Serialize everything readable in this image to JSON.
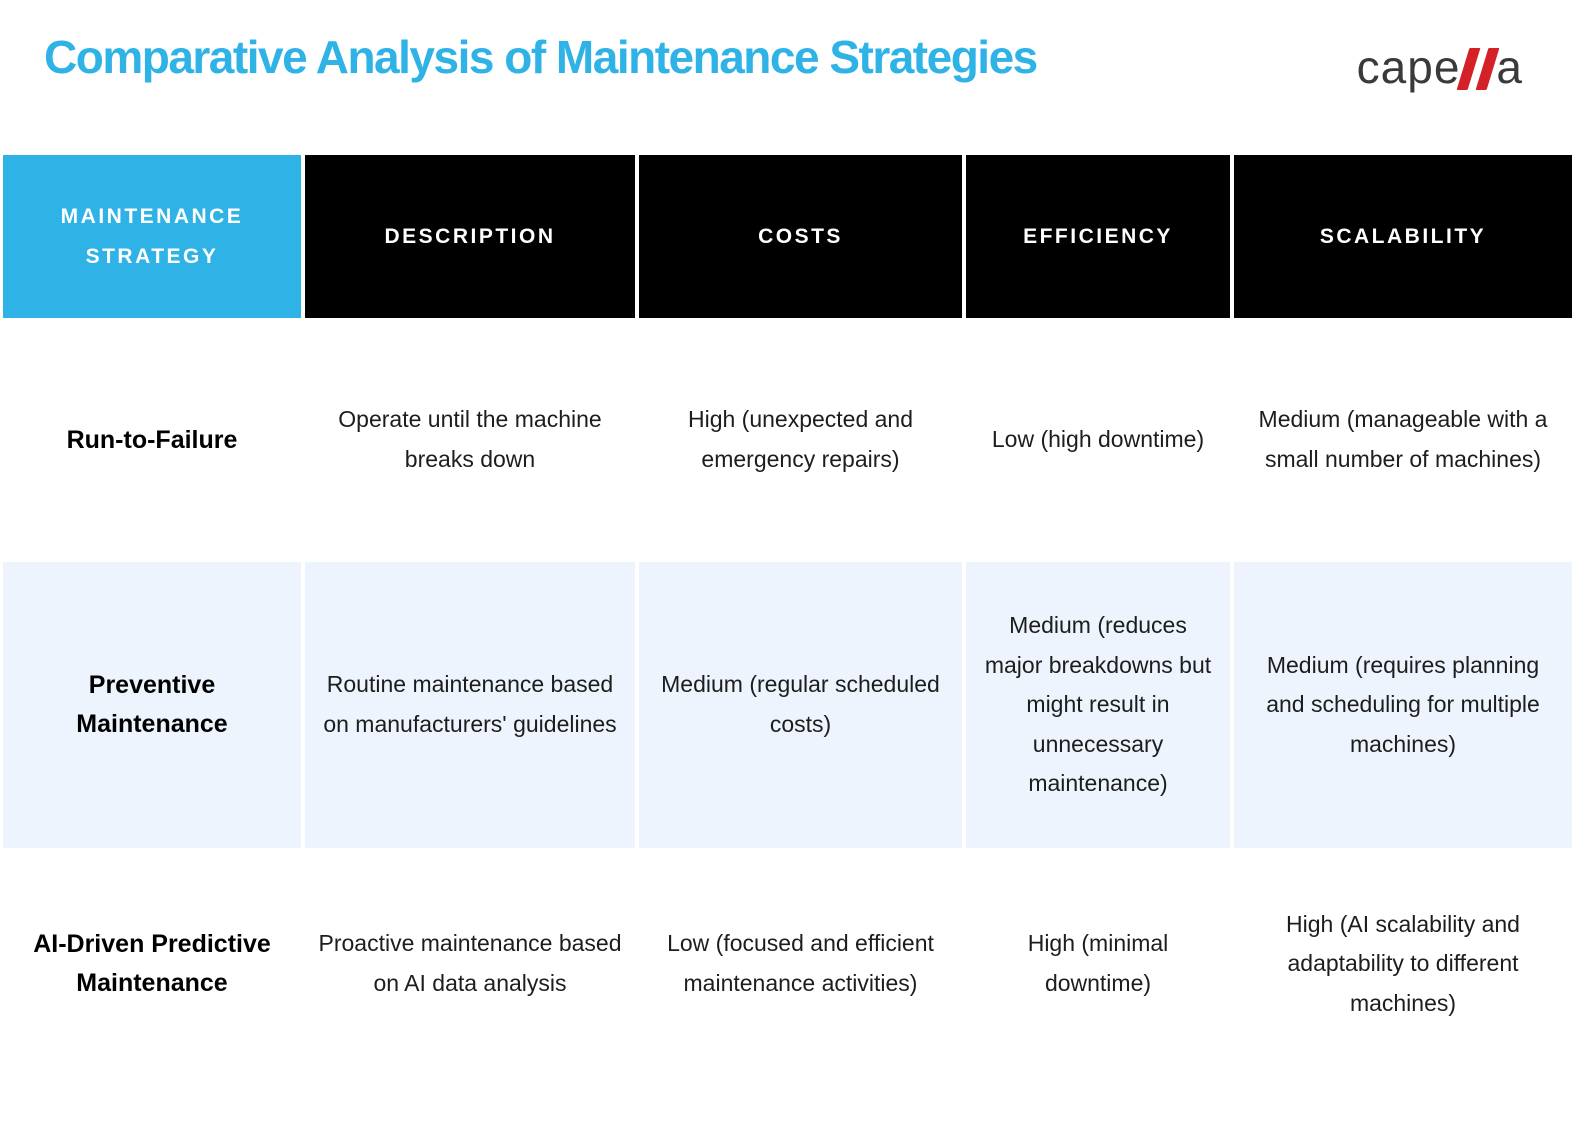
{
  "header": {
    "title": "Comparative Analysis of Maintenance Strategies",
    "logo": {
      "name": "capella",
      "prefix": "cape",
      "suffix": "a"
    }
  },
  "colors": {
    "accent_blue": "#2fb3e7",
    "header_black": "#000000",
    "row_alt_blue": "#edf4fd",
    "logo_red": "#d42127",
    "body_text": "#1d1d1d"
  },
  "table": {
    "columns": [
      "MAINTENANCE STRATEGY",
      "DESCRIPTION",
      "COSTS",
      "EFFICIENCY",
      "SCALABILITY"
    ],
    "rows": [
      {
        "strategy": "Run-to-Failure",
        "description": "Operate until the machine breaks down",
        "costs": "High (unexpected and emergency repairs)",
        "efficiency": "Low (high downtime)",
        "scalability": "Medium (manageable with a small number of machines)"
      },
      {
        "strategy": "Preventive Maintenance",
        "description": "Routine maintenance based on manufacturers' guidelines",
        "costs": "Medium (regular scheduled costs)",
        "efficiency": "Medium (reduces major breakdowns but might result in unnecessary maintenance)",
        "scalability": "Medium (requires planning and scheduling for multiple machines)"
      },
      {
        "strategy": "AI-Driven Predictive Maintenance",
        "description": "Proactive maintenance based on AI data analysis",
        "costs": "Low (focused and efficient maintenance activities)",
        "efficiency": "High (minimal downtime)",
        "scalability": "High (AI scalability and adaptability to different machines)"
      }
    ]
  },
  "chart_data": {
    "type": "table",
    "title": "Comparative Analysis of Maintenance Strategies",
    "columns": [
      "MAINTENANCE STRATEGY",
      "DESCRIPTION",
      "COSTS",
      "EFFICIENCY",
      "SCALABILITY"
    ],
    "rows": [
      [
        "Run-to-Failure",
        "Operate until the machine breaks down",
        "High (unexpected and emergency repairs)",
        "Low (high downtime)",
        "Medium (manageable with a small number of machines)"
      ],
      [
        "Preventive Maintenance",
        "Routine maintenance based on manufacturers' guidelines",
        "Medium (regular scheduled costs)",
        "Medium (reduces major breakdowns but might result in unnecessary maintenance)",
        "Medium (requires planning and scheduling for multiple machines)"
      ],
      [
        "AI-Driven Predictive Maintenance",
        "Proactive maintenance based on AI data analysis",
        "Low (focused and efficient maintenance activities)",
        "High (minimal downtime)",
        "High (AI scalability and adaptability to different machines)"
      ]
    ],
    "layout_hints": {
      "header_style": "black cells, first cell blue accent",
      "alternating_row_highlight": "row 2 light blue"
    }
  }
}
